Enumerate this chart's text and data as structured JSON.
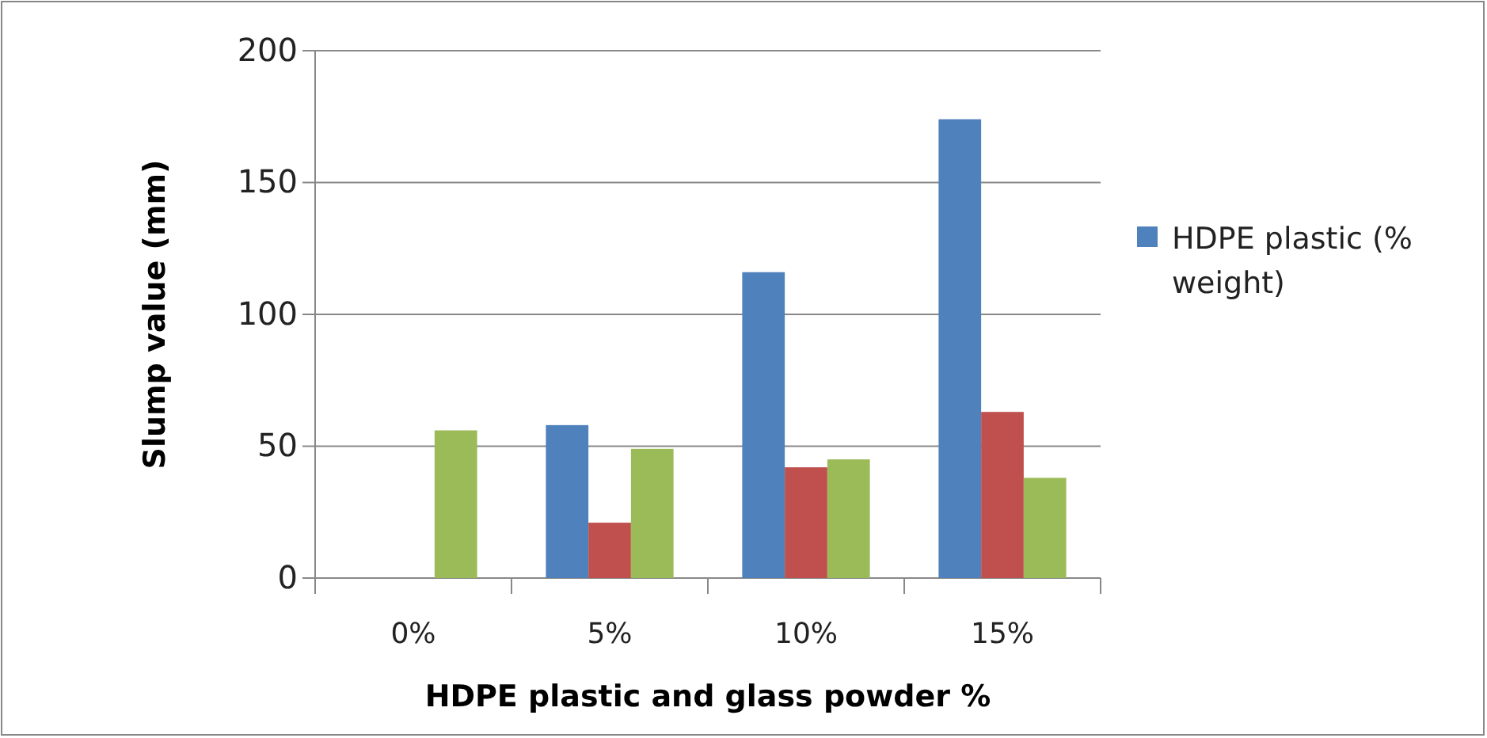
{
  "chart_data": {
    "type": "bar",
    "xlabel": "HDPE plastic and glass powder %",
    "ylabel": "Slump value (mm)",
    "categories": [
      "0%",
      "5%",
      "10%",
      "15%"
    ],
    "series": [
      {
        "name": "HDPE plastic (% weight)",
        "color": "#4f81bd",
        "values": [
          null,
          58,
          116,
          174
        ]
      },
      {
        "color": "#c0504d",
        "values": [
          null,
          21,
          42,
          63
        ]
      },
      {
        "color": "#9bbb59",
        "values": [
          56,
          49,
          45,
          38
        ]
      }
    ],
    "ylim": [
      0,
      200
    ],
    "yticks": [
      0,
      50,
      100,
      150,
      200
    ],
    "grid": "y",
    "legend": "right"
  }
}
